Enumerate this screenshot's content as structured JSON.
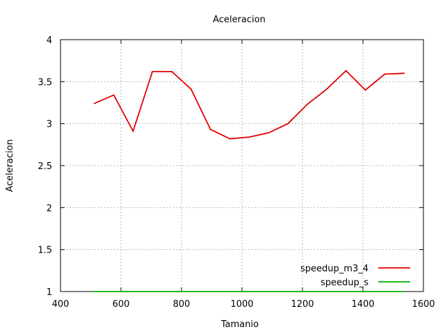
{
  "chart_data": {
    "type": "line",
    "title": "Aceleracion",
    "xlabel": "Tamanio",
    "ylabel": "Aceleracion",
    "xlim": [
      400,
      1600
    ],
    "ylim": [
      1,
      4
    ],
    "xticks": [
      400,
      600,
      800,
      1000,
      1200,
      1400,
      1600
    ],
    "yticks": [
      1,
      1.5,
      2,
      2.5,
      3,
      3.5,
      4
    ],
    "xtick_labels": [
      "400",
      "600",
      "800",
      "1000",
      "1200",
      "1400",
      "1600"
    ],
    "ytick_labels": [
      "1",
      "1.5",
      "2",
      "2.5",
      "3",
      "3.5",
      "4"
    ],
    "grid": true,
    "legend_position": "bottom-right",
    "series": [
      {
        "name": "speedup_m3_4",
        "color": "#e00000",
        "x": [
          512,
          576,
          640,
          704,
          768,
          832,
          896,
          960,
          1024,
          1088,
          1152,
          1216,
          1280,
          1344,
          1408,
          1472,
          1536
        ],
        "y": [
          3.24,
          3.34,
          2.91,
          3.62,
          3.62,
          3.41,
          2.93,
          2.82,
          2.84,
          2.89,
          3.0,
          3.23,
          3.41,
          3.63,
          3.4,
          3.59,
          3.6
        ]
      },
      {
        "name": "speedup_s",
        "color": "#00b000",
        "x": [
          512,
          576,
          640,
          704,
          768,
          832,
          896,
          960,
          1024,
          1088,
          1152,
          1216,
          1280,
          1344,
          1408,
          1472,
          1536
        ],
        "y": [
          1,
          1,
          1,
          1,
          1,
          1,
          1,
          1,
          1,
          1,
          1,
          1,
          1,
          1,
          1,
          1,
          1
        ]
      }
    ]
  }
}
